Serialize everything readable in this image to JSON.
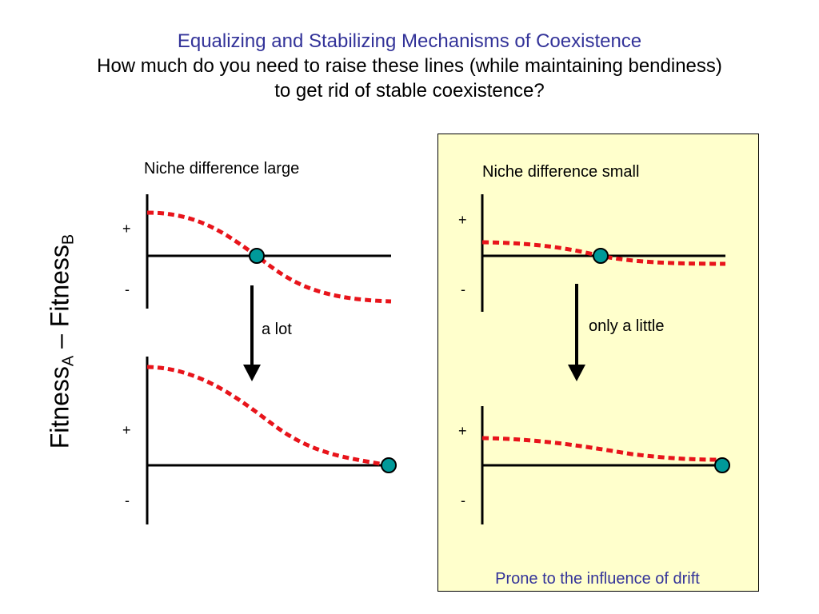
{
  "title": {
    "heading": "Equalizing and Stabilizing Mechanisms of Coexistence",
    "line2": "How much do you need to raise these lines (while maintaining bendiness)",
    "line3": "to get rid of stable coexistence?"
  },
  "y_axis_label": {
    "main1": "Fitness",
    "sub1": "A",
    "sep": " – ",
    "main2": "Fitness",
    "sub2": "B"
  },
  "left": {
    "heading": "Niche difference large",
    "arrow_label": "a lot",
    "top_plot": {
      "plus": "+",
      "minus": "-"
    },
    "bottom_plot": {
      "plus": "+",
      "minus": "-"
    }
  },
  "right": {
    "heading": "Niche difference small",
    "arrow_label": "only a little",
    "footer": "Prone to the influence of drift",
    "top_plot": {
      "plus": "+",
      "minus": "-"
    },
    "bottom_plot": {
      "plus": "+",
      "minus": "-"
    }
  },
  "colors": {
    "title": "#333399",
    "footer": "#333399",
    "panel_bg": "#FFFFCC",
    "curve": "#E8141B",
    "equilibrium": "#009999",
    "axis": "#000000"
  }
}
